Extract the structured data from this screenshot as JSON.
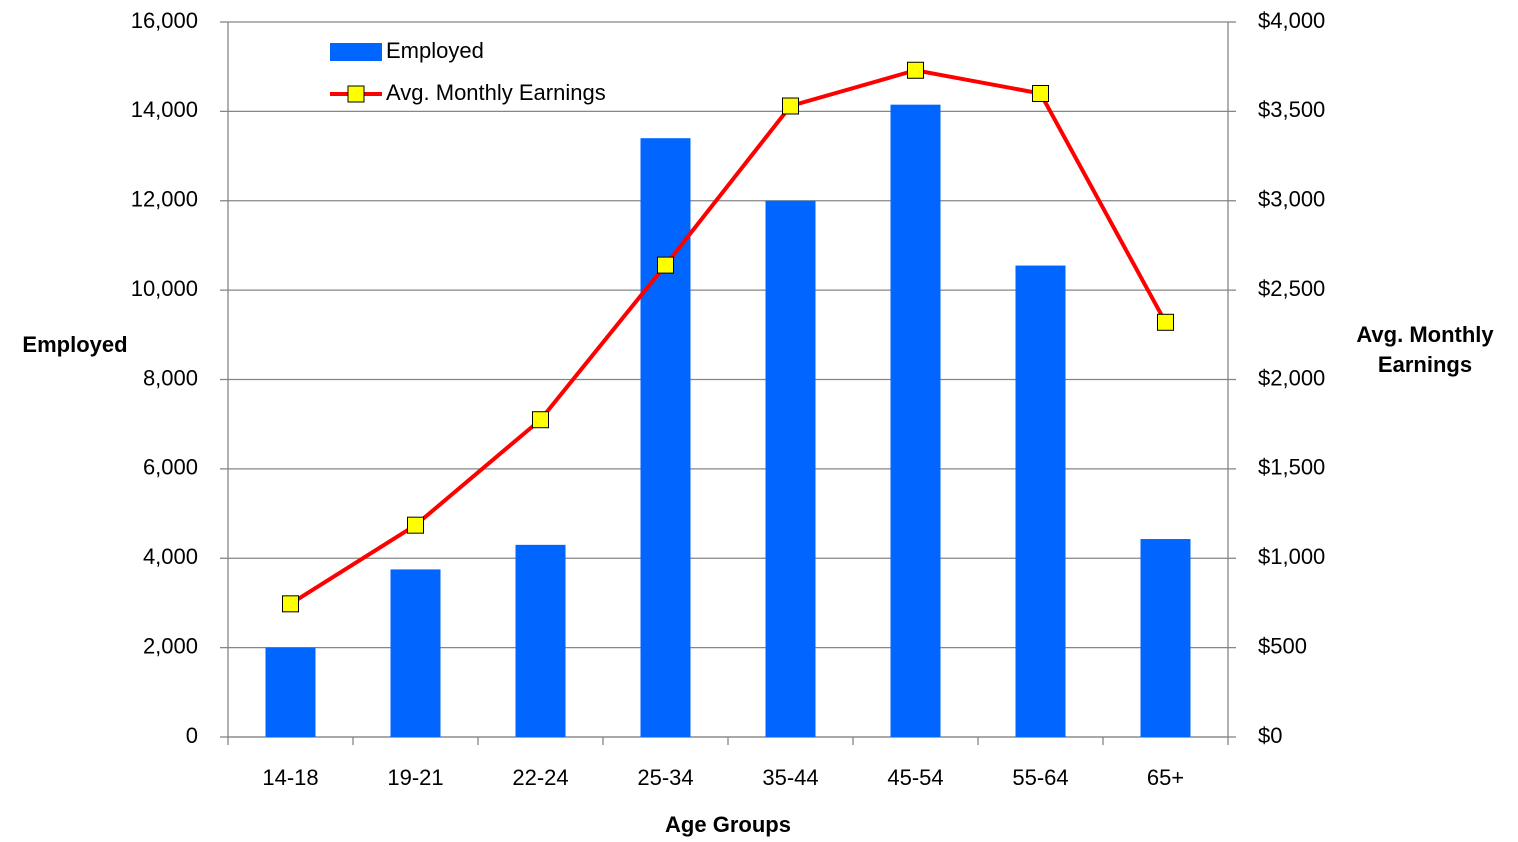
{
  "chart_data": {
    "type": "bar-line",
    "x_label": "Age Groups",
    "y_label": "Employed",
    "y2_label": "Avg. Monthly Earnings",
    "categories": [
      "14-18",
      "19-21",
      "22-24",
      "25-34",
      "35-44",
      "45-54",
      "55-64",
      "65+"
    ],
    "series": [
      {
        "name": "Employed",
        "type": "bar",
        "color": "#0066ff",
        "axis": "y",
        "values": [
          2000,
          3750,
          4300,
          13400,
          12000,
          14150,
          10550,
          4430
        ]
      },
      {
        "name": "Avg. Monthly Earnings",
        "type": "line",
        "color": "#ff0000",
        "marker_color": "#ffff00",
        "axis": "y2",
        "values": [
          745,
          1185,
          1775,
          2640,
          3530,
          3730,
          3600,
          2320
        ]
      }
    ],
    "ylim": [
      0,
      16000
    ],
    "yticks": [
      0,
      {
        "value": 2000,
        "label": "2,000"
      },
      {
        "value": 4000,
        "label": "4,000"
      },
      {
        "value": 6000,
        "label": "6,000"
      },
      {
        "value": 8000,
        "label": "8,000"
      },
      {
        "value": 10000,
        "label": "10,000"
      },
      {
        "value": 12000,
        "label": "12,000"
      },
      {
        "value": 14000,
        "label": "14,000"
      },
      {
        "value": 16000,
        "label": "16,000"
      }
    ],
    "y2lim": [
      0,
      4000
    ],
    "y2ticks": [
      {
        "value": 0,
        "label": "$0"
      },
      {
        "value": 500,
        "label": "$500"
      },
      {
        "value": 1000,
        "label": "$1,000"
      },
      {
        "value": 1500,
        "label": "$1,500"
      },
      {
        "value": 2000,
        "label": "$2,000"
      },
      {
        "value": 2500,
        "label": "$2,500"
      },
      {
        "value": 3000,
        "label": "$3,000"
      },
      {
        "value": 3500,
        "label": "$3,500"
      },
      {
        "value": 4000,
        "label": "$4,000"
      }
    ],
    "grid": true,
    "legend": "upper left"
  }
}
